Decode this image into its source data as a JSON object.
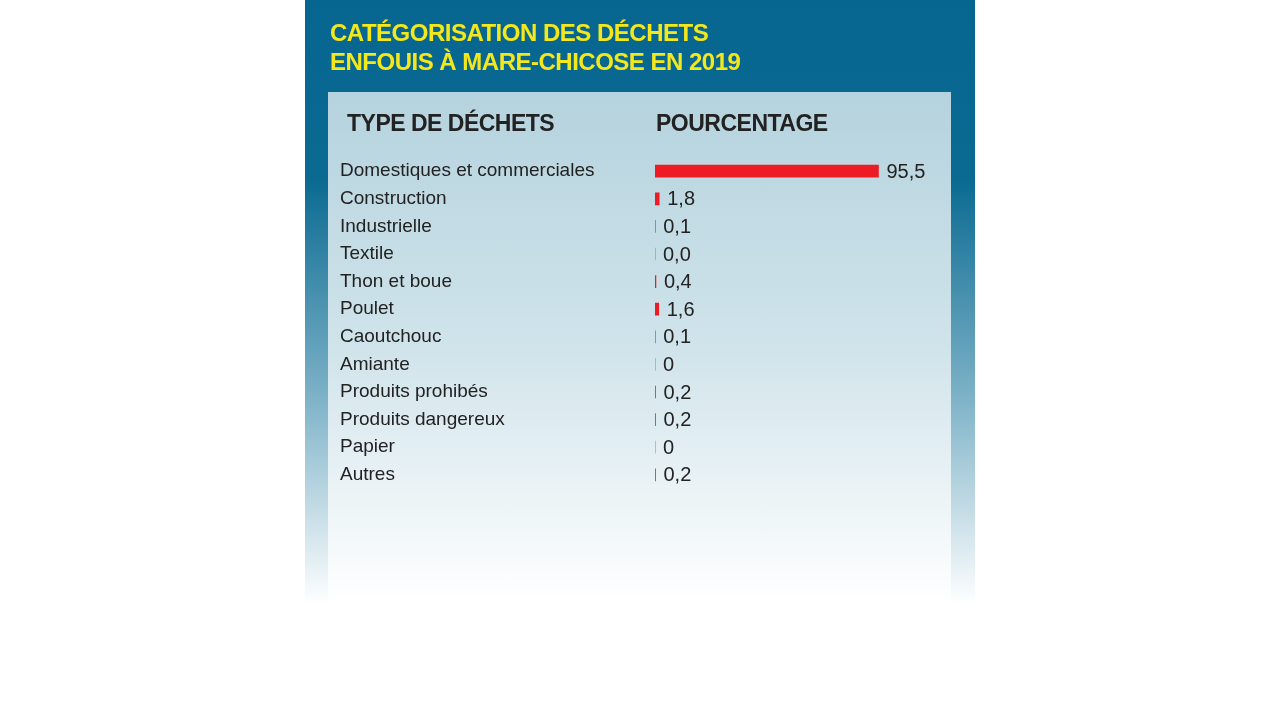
{
  "chart_data": {
    "type": "bar",
    "orientation": "horizontal",
    "title": "CATÉGORISATION DES DÉCHETS ENFOUIS À MARE-CHICOSE EN 2019",
    "ylabel": "TYPE DE DÉCHETS",
    "xlabel": "POURCENTAGE",
    "categories": [
      "Domestiques et commerciales",
      "Construction",
      "Industrielle",
      "Textile",
      "Thon et boue",
      "Poulet",
      "Caoutchouc",
      "Amiante",
      "Produits prohibés",
      "Produits dangereux",
      "Papier",
      "Autres"
    ],
    "values": [
      95.5,
      1.8,
      0.1,
      0,
      0.4,
      1.6,
      0.1,
      0,
      0.2,
      0.2,
      0,
      0.2
    ],
    "value_labels": [
      "95,5",
      "1,8",
      "0,1",
      "0,0",
      "0,4",
      "1,6",
      "0,1",
      "0",
      "0,2",
      "0,2",
      "0",
      "0,2"
    ],
    "color": "#ed1c24",
    "legend": false
  }
}
